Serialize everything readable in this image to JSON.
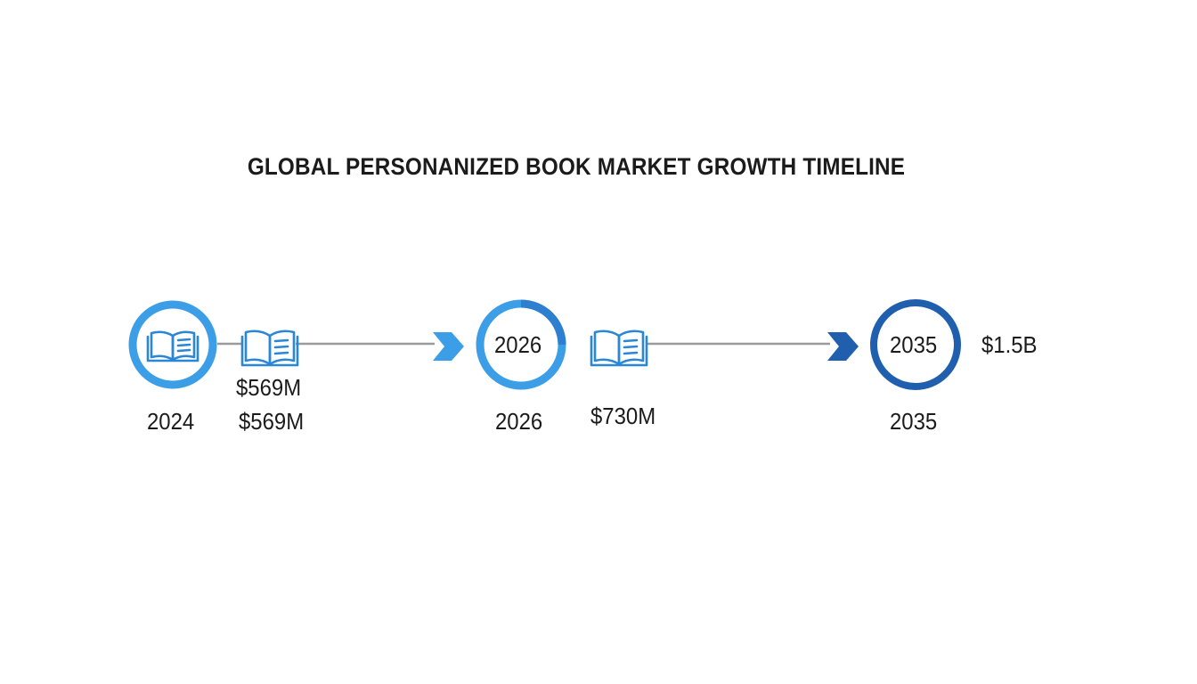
{
  "title": "GLOBAL PERSONANIZED BOOK MARKET GROWTH TIMELINE",
  "colors": {
    "ring_light": "#3b9ee6",
    "ring_dark": "#1f5fad",
    "line": "#9a9a9a",
    "arrow_light": "#3b9ee6",
    "arrow_dark": "#1f5fad",
    "text": "#1b1b1b"
  },
  "milestones": [
    {
      "year": "2024",
      "ring_label": "",
      "ring_icon": "open-book-icon",
      "side_icon": "open-book-icon",
      "value_top": "$569M",
      "value_bottom": "$569M"
    },
    {
      "year": "2026",
      "ring_label": "2026",
      "side_icon": "open-book-icon",
      "value_bottom": "$730M"
    },
    {
      "year": "2035",
      "ring_label": "2035",
      "value_side": "$1.5B"
    }
  ]
}
